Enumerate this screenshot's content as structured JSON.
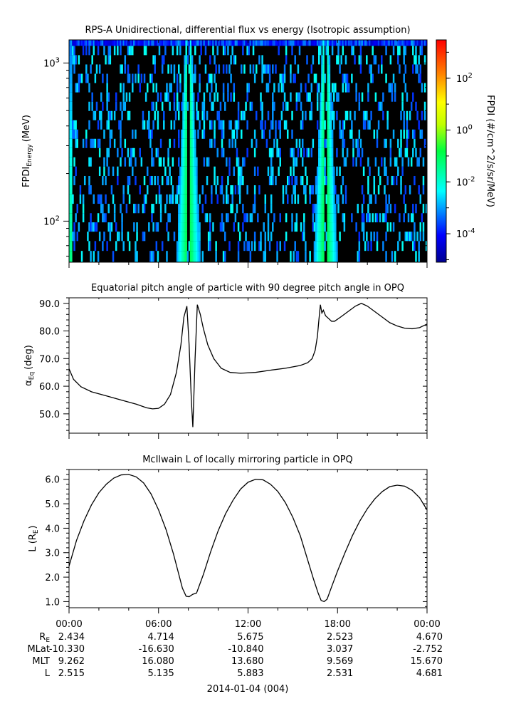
{
  "chart_data": [
    {
      "type": "heatmap",
      "title": "RPS-A Unidirectional, differential flux vs energy (Isotropic assumption)",
      "ylabel_main": "FPDI",
      "ylabel_sub": "Energy",
      "ylabel_unit": "(MeV)",
      "yscale": "log",
      "ylim": [
        55,
        1400
      ],
      "yticks": [
        {
          "value": 100,
          "base": "10",
          "exp": "2"
        },
        {
          "value": 1000,
          "base": "10",
          "exp": "3"
        }
      ],
      "energy_channels_mev": [
        60,
        70,
        80,
        92,
        105,
        120,
        138,
        158,
        180,
        207,
        237,
        271,
        310,
        355,
        406,
        465,
        532,
        609,
        698,
        799,
        915,
        1048,
        1200,
        1374
      ],
      "colorbar": {
        "label": "FPDI (#/cm^2/s/sr/MeV)",
        "scale": "log",
        "range": [
          8e-06,
          3000
        ],
        "ticks": [
          {
            "value": 0.0001,
            "base": "10",
            "exp": "-4"
          },
          {
            "value": 0.01,
            "base": "10",
            "exp": "-2"
          },
          {
            "value": 1,
            "base": "10",
            "exp": "0"
          },
          {
            "value": 100,
            "base": "10",
            "exp": "2"
          }
        ]
      },
      "flux_bands": [
        {
          "center_hour": 8.0,
          "half_width_low_energy_h": 0.8,
          "half_width_high_energy_h": 0.2,
          "peak_flux": 0.3,
          "gap_hour": 8.0
        },
        {
          "center_hour": 17.2,
          "half_width_low_energy_h": 0.8,
          "half_width_high_energy_h": 0.2,
          "peak_flux": 0.3,
          "gap_hour": 17.2
        }
      ],
      "background_flux": "sparse noise, 1e-4 to 1e-2"
    },
    {
      "type": "line",
      "title": "Equatorial pitch angle of particle with 90 degree pitch angle in OPQ",
      "ylabel_main": "α",
      "ylabel_sub": "Eq",
      "ylabel_unit": "(deg)",
      "ylim": [
        43,
        92
      ],
      "yticks": [
        50,
        60,
        70,
        80,
        90
      ],
      "x_hours": [
        0,
        0.3,
        0.8,
        1.5,
        2.5,
        3.5,
        4.5,
        5.2,
        5.6,
        6.0,
        6.4,
        6.8,
        7.2,
        7.5,
        7.7,
        7.9,
        8.05,
        8.2,
        8.3,
        8.45,
        8.6,
        8.8,
        9.0,
        9.3,
        9.7,
        10.2,
        10.8,
        11.5,
        12.5,
        13.5,
        14.5,
        15.5,
        16.0,
        16.3,
        16.5,
        16.65,
        16.75,
        16.85,
        16.95,
        17.05,
        17.2,
        17.4,
        17.6,
        17.8,
        18.2,
        18.7,
        19.2,
        19.6,
        20.0,
        20.5,
        21.0,
        21.5,
        22.0,
        22.5,
        23.0,
        23.5,
        24.0
      ],
      "series": [
        {
          "values": [
            66.3,
            62.5,
            59.8,
            58.0,
            56.5,
            55.0,
            53.5,
            52.2,
            51.8,
            52.0,
            53.5,
            57.0,
            65.0,
            75.0,
            85.0,
            89.0,
            75.0,
            55.0,
            45.2,
            70.0,
            89.5,
            86.0,
            81.0,
            75.0,
            70.0,
            66.5,
            65.0,
            64.7,
            65.0,
            65.8,
            66.5,
            67.5,
            68.5,
            70.0,
            73.0,
            78.0,
            84.0,
            89.5,
            86.5,
            87.5,
            85.5,
            84.5,
            83.5,
            83.5,
            85.0,
            87.0,
            89.0,
            90.0,
            89.0,
            87.0,
            85.0,
            83.0,
            81.8,
            81.0,
            80.8,
            81.2,
            82.5
          ]
        }
      ]
    },
    {
      "type": "line",
      "title": "McIlwain L of locally mirroring particle in OPQ",
      "ylabel_main": "L (R",
      "ylabel_sub": "E",
      "ylabel_unit": ")",
      "ylim": [
        0.75,
        6.4
      ],
      "yticks": [
        1,
        2,
        3,
        4,
        5,
        6
      ],
      "x_hours": [
        0,
        0.5,
        1.0,
        1.5,
        2.0,
        2.5,
        3.0,
        3.5,
        4.0,
        4.5,
        5.0,
        5.5,
        6.0,
        6.5,
        7.0,
        7.3,
        7.6,
        7.85,
        8.05,
        8.3,
        8.55,
        9.0,
        9.5,
        10.0,
        10.5,
        11.0,
        11.5,
        12.0,
        12.5,
        13.0,
        13.5,
        14.0,
        14.5,
        15.0,
        15.5,
        16.0,
        16.4,
        16.7,
        16.9,
        17.1,
        17.3,
        17.6,
        18.0,
        18.5,
        19.0,
        19.5,
        20.0,
        20.5,
        21.0,
        21.5,
        22.0,
        22.5,
        23.0,
        23.5,
        24.0
      ],
      "series": [
        {
          "values": [
            2.45,
            3.5,
            4.3,
            4.95,
            5.45,
            5.8,
            6.05,
            6.18,
            6.2,
            6.1,
            5.85,
            5.4,
            4.75,
            3.95,
            2.95,
            2.25,
            1.55,
            1.22,
            1.2,
            1.3,
            1.35,
            2.1,
            3.05,
            3.9,
            4.6,
            5.15,
            5.6,
            5.88,
            6.0,
            5.98,
            5.8,
            5.5,
            5.05,
            4.45,
            3.7,
            2.7,
            1.9,
            1.35,
            1.05,
            1.0,
            1.1,
            1.6,
            2.25,
            3.0,
            3.7,
            4.3,
            4.8,
            5.2,
            5.5,
            5.7,
            5.76,
            5.72,
            5.55,
            5.25,
            4.75
          ]
        }
      ]
    }
  ],
  "xaxis": {
    "tick_labels": [
      "00:00",
      "06:00",
      "12:00",
      "18:00",
      "00:00"
    ],
    "tick_hours": [
      0,
      6,
      12,
      18,
      24
    ],
    "date_label": "2014-01-04 (004)"
  },
  "ephemeris": [
    {
      "label": "R",
      "label_sub": "E",
      "values": [
        "2.434",
        "4.714",
        "5.675",
        "2.523",
        "4.670"
      ]
    },
    {
      "label": "MLat",
      "label_sub": "",
      "values": [
        "-10.330",
        "-16.630",
        "-10.840",
        "3.037",
        "-2.752"
      ]
    },
    {
      "label": "MLT",
      "label_sub": "",
      "values": [
        "9.262",
        "16.080",
        "13.680",
        "9.569",
        "15.670"
      ]
    },
    {
      "label": "L",
      "label_sub": "",
      "values": [
        "2.515",
        "5.135",
        "5.883",
        "2.531",
        "4.681"
      ]
    }
  ],
  "colors": {
    "line": "#000000",
    "spectrogram_background": "#000000"
  }
}
